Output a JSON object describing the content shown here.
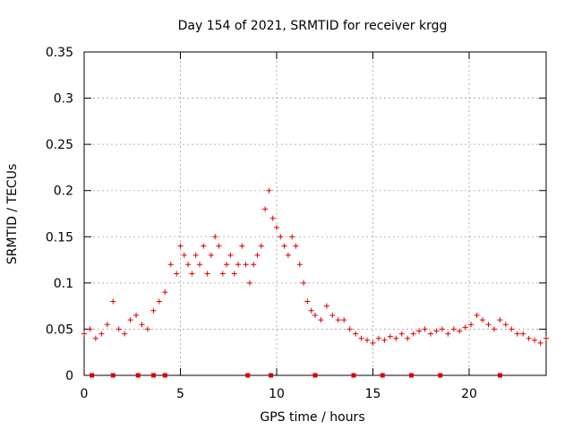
{
  "chart_data": {
    "type": "scatter",
    "title": "Day 154 of 2021, SRMTID for receiver krgg",
    "xlabel": "GPS time / hours",
    "ylabel": "SRMTID / TECUs",
    "xlim": [
      0,
      24
    ],
    "ylim": [
      0,
      0.35
    ],
    "xticks": [
      0,
      5,
      10,
      15,
      20
    ],
    "xtick_labels": [
      "0",
      "5",
      "10",
      "15",
      "20"
    ],
    "yticks": [
      0,
      0.05,
      0.1,
      0.15,
      0.2,
      0.25,
      0.3,
      0.35
    ],
    "ytick_labels": [
      "0",
      "0.05",
      "0.1",
      "0.15",
      "0.2",
      "0.25",
      "0.3",
      "0.35"
    ],
    "grid": true,
    "marker": "+",
    "series_color": "#dd0000",
    "series": [
      {
        "name": "SRMTID",
        "x": [
          0.0,
          0.3,
          0.6,
          0.9,
          1.2,
          1.5,
          1.8,
          2.1,
          2.4,
          2.7,
          3.0,
          3.3,
          3.6,
          3.9,
          4.2,
          4.5,
          4.8,
          5.0,
          5.2,
          5.4,
          5.6,
          5.8,
          6.0,
          6.2,
          6.4,
          6.6,
          6.8,
          7.0,
          7.2,
          7.4,
          7.6,
          7.8,
          8.0,
          8.2,
          8.4,
          8.6,
          8.8,
          9.0,
          9.2,
          9.4,
          9.6,
          9.8,
          10.0,
          10.2,
          10.4,
          10.6,
          10.8,
          11.0,
          11.2,
          11.4,
          11.6,
          11.8,
          12.0,
          12.3,
          12.6,
          12.9,
          13.2,
          13.5,
          13.8,
          14.1,
          14.4,
          14.7,
          15.0,
          15.3,
          15.6,
          15.9,
          16.2,
          16.5,
          16.8,
          17.1,
          17.4,
          17.7,
          18.0,
          18.3,
          18.6,
          18.9,
          19.2,
          19.5,
          19.8,
          20.1,
          20.4,
          20.7,
          21.0,
          21.3,
          21.6,
          21.9,
          22.2,
          22.5,
          22.8,
          23.1,
          23.4,
          23.7,
          24.0
        ],
        "y": [
          0.045,
          0.05,
          0.04,
          0.045,
          0.055,
          0.08,
          0.05,
          0.045,
          0.06,
          0.065,
          0.055,
          0.05,
          0.07,
          0.08,
          0.09,
          0.12,
          0.11,
          0.14,
          0.13,
          0.12,
          0.11,
          0.13,
          0.12,
          0.14,
          0.11,
          0.13,
          0.15,
          0.14,
          0.11,
          0.12,
          0.13,
          0.11,
          0.12,
          0.14,
          0.12,
          0.1,
          0.12,
          0.13,
          0.14,
          0.18,
          0.2,
          0.17,
          0.16,
          0.15,
          0.14,
          0.13,
          0.15,
          0.14,
          0.12,
          0.1,
          0.08,
          0.07,
          0.065,
          0.06,
          0.075,
          0.065,
          0.06,
          0.06,
          0.05,
          0.045,
          0.04,
          0.038,
          0.035,
          0.04,
          0.038,
          0.042,
          0.04,
          0.045,
          0.04,
          0.045,
          0.048,
          0.05,
          0.045,
          0.048,
          0.05,
          0.045,
          0.05,
          0.048,
          0.052,
          0.055,
          0.065,
          0.06,
          0.055,
          0.05,
          0.06,
          0.055,
          0.05,
          0.045,
          0.045,
          0.04,
          0.038,
          0.035,
          0.04
        ]
      }
    ],
    "zero_markers_x": [
      0.4,
      1.5,
      2.8,
      3.6,
      4.2,
      8.5,
      9.7,
      12.0,
      14.0,
      15.5,
      17.0,
      18.5,
      21.6
    ]
  }
}
